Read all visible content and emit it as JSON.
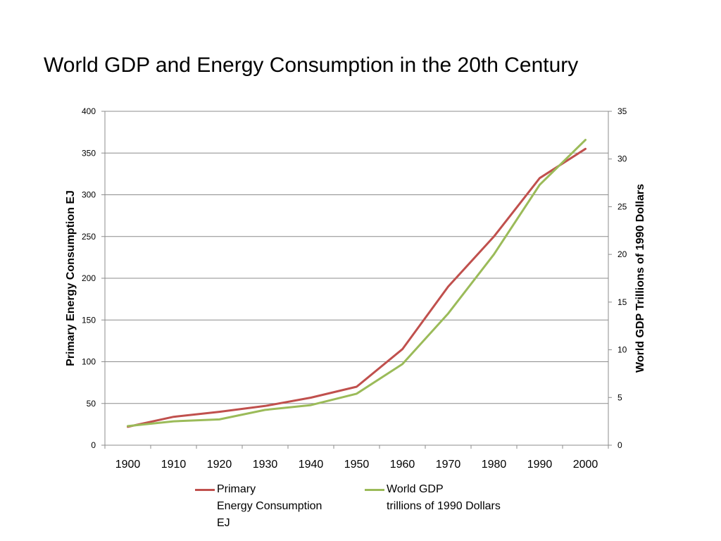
{
  "chart_data": {
    "type": "line",
    "title": "World GDP and Energy Consumption in the 20th Century",
    "xlabel": "",
    "ylabel": "Primary Energy Consumption EJ",
    "y2label": "World GDP Trillions of 1990 Dollars",
    "categories": [
      "1900",
      "1910",
      "1920",
      "1930",
      "1940",
      "1950",
      "1960",
      "1970",
      "1980",
      "1990",
      "2000"
    ],
    "ylim": [
      0,
      400
    ],
    "y_ticks": [
      "0",
      "50",
      "100",
      "150",
      "200",
      "250",
      "300",
      "350",
      "400"
    ],
    "y2lim": [
      0,
      35
    ],
    "y2_ticks": [
      "0",
      "5",
      "10",
      "15",
      "20",
      "25",
      "30",
      "35"
    ],
    "grid": true,
    "legend_position": "bottom",
    "series": [
      {
        "name": "Primary\nEnergy Consumption\nEJ",
        "axis": "left",
        "color": "#c0504d",
        "values": [
          22,
          34,
          40,
          47,
          57,
          70,
          115,
          190,
          250,
          320,
          355
        ]
      },
      {
        "name": "World GDP\ntrillions of 1990 Dollars",
        "axis": "right",
        "color": "#9bbb59",
        "values": [
          2.0,
          2.5,
          2.7,
          3.7,
          4.2,
          5.4,
          8.5,
          13.8,
          20.0,
          27.3,
          32.0
        ]
      }
    ]
  }
}
